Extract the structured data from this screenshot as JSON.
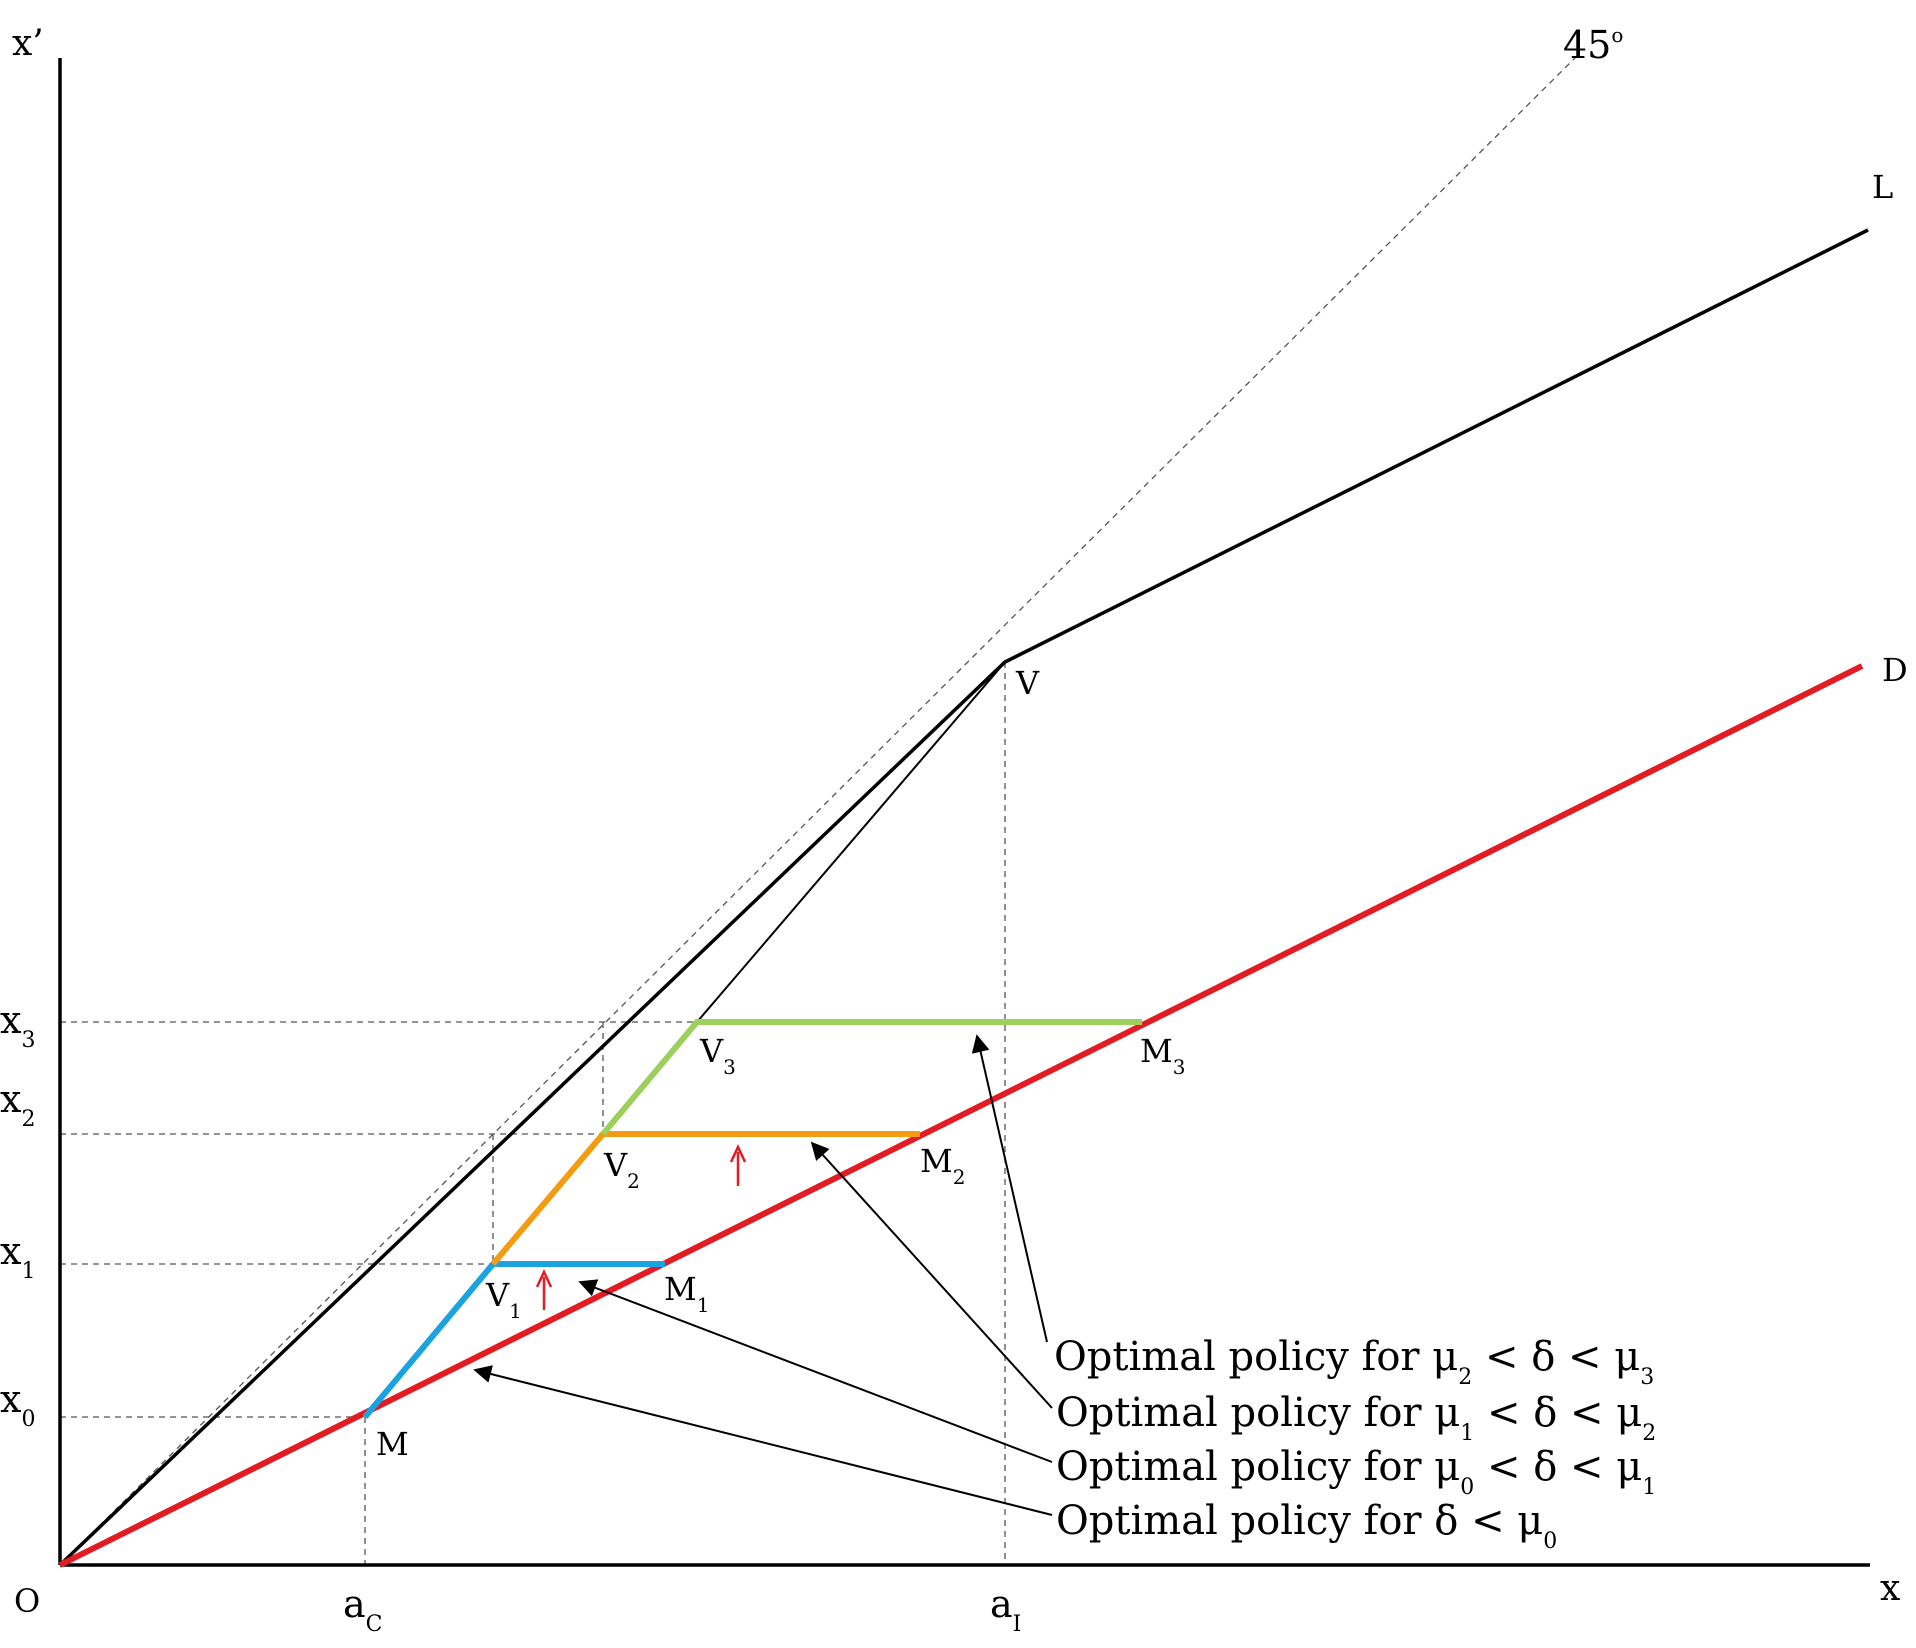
{
  "axes": {
    "origin": "O",
    "x_label": "x",
    "y_label": "x’",
    "diagonal_label": "45",
    "diagonal_label_sup": "o"
  },
  "lines": {
    "L_label": "L",
    "D_label": "D",
    "V_label": "V"
  },
  "x_ticks": {
    "aC": {
      "base": "a",
      "sub": "C"
    },
    "aI": {
      "base": "a",
      "sub": "I"
    }
  },
  "y_ticks": {
    "x0": {
      "base": "x",
      "sub": "0"
    },
    "x1": {
      "base": "x",
      "sub": "1"
    },
    "x2": {
      "base": "x",
      "sub": "2"
    },
    "x3": {
      "base": "x",
      "sub": "3"
    }
  },
  "points": {
    "M": {
      "base": "M",
      "sub": ""
    },
    "V1": {
      "base": "V",
      "sub": "1"
    },
    "M1": {
      "base": "M",
      "sub": "1"
    },
    "V2": {
      "base": "V",
      "sub": "2"
    },
    "M2": {
      "base": "M",
      "sub": "2"
    },
    "V3": {
      "base": "V",
      "sub": "3"
    },
    "M3": {
      "base": "M",
      "sub": "3"
    }
  },
  "annotations": {
    "policy3": {
      "prefix": "Optimal policy for ",
      "mu_a": "μ",
      "mu_a_sub": "2",
      "mid": " < δ < ",
      "mu_b": "μ",
      "mu_b_sub": "3"
    },
    "policy2": {
      "prefix": "Optimal policy for ",
      "mu_a": "μ",
      "mu_a_sub": "1",
      "mid": " < δ < ",
      "mu_b": "μ",
      "mu_b_sub": "2"
    },
    "policy1": {
      "prefix": "Optimal policy for ",
      "mu_a": "μ",
      "mu_a_sub": "0",
      "mid": " < δ < ",
      "mu_b": "μ",
      "mu_b_sub": "1"
    },
    "policy0": {
      "prefix": "Optimal policy for ",
      "rel": "δ < ",
      "mu": "μ",
      "mu_sub": "0"
    }
  },
  "colors": {
    "axis": "#000000",
    "D_line": "#e31b23",
    "blue_path": "#1aa3e0",
    "orange_path": "#f39c12",
    "green_path": "#9ccf5c",
    "red_arrow": "#e31b23",
    "dashed": "#555555"
  }
}
